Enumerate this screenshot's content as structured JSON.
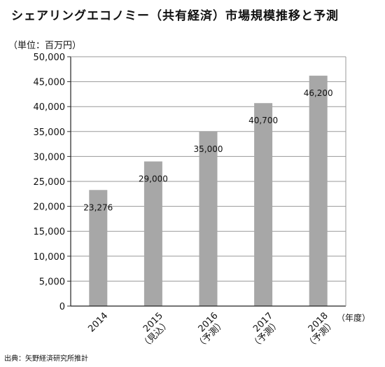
{
  "chart_data": {
    "type": "bar",
    "title": "シェアリングエコノミー（共有経済）市場規模推移と予測",
    "ylabel": "（単位：百万円）",
    "xlabel_unit": "（年度）",
    "source": "出典：矢野経済研究所推計",
    "ylim": [
      0,
      50000
    ],
    "yticks": [
      0,
      5000,
      10000,
      15000,
      20000,
      25000,
      30000,
      35000,
      40000,
      45000,
      50000
    ],
    "ytick_labels": [
      "0",
      "5,000",
      "10,000",
      "15,000",
      "20,000",
      "25,000",
      "30,000",
      "35,000",
      "40,000",
      "45,000",
      "50,000"
    ],
    "categories": [
      {
        "year": "2014",
        "note": ""
      },
      {
        "year": "2015",
        "note": "（見込）"
      },
      {
        "year": "2016",
        "note": "（予測）"
      },
      {
        "year": "2017",
        "note": "（予測）"
      },
      {
        "year": "2018",
        "note": "（予測）"
      }
    ],
    "values": [
      23276,
      29000,
      35000,
      40700,
      46200
    ],
    "value_labels": [
      "23,276",
      "29,000",
      "35,000",
      "40,700",
      "46,200"
    ],
    "grid": "horizontal",
    "bar_color": "#a7a7a7",
    "grid_color": "#999999"
  }
}
